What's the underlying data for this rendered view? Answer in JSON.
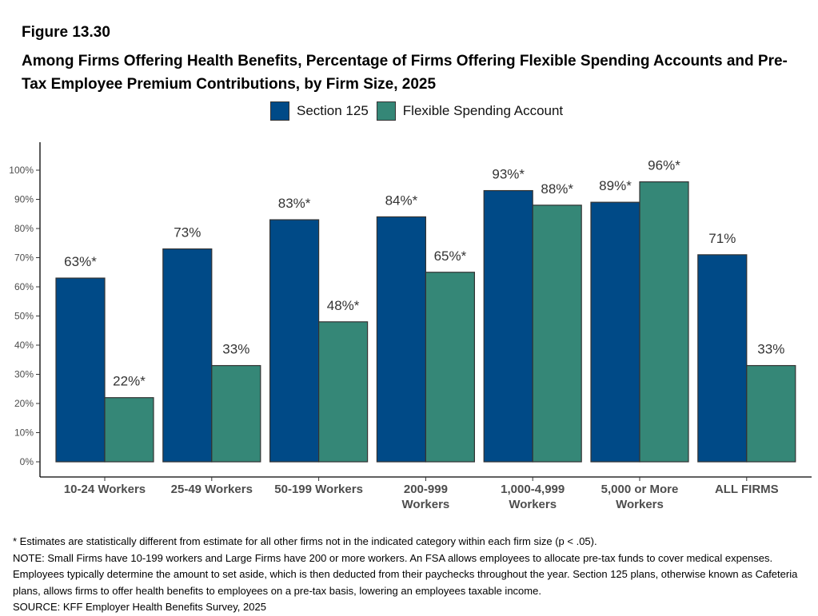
{
  "figure_label": "Figure 13.30",
  "chart_data": {
    "type": "bar",
    "title": "Among Firms Offering Health Benefits, Percentage of Firms Offering Flexible Spending Accounts and Pre-Tax Employee Premium Contributions, by Firm Size, 2025",
    "categories": [
      [
        "10-24 Workers"
      ],
      [
        "25-49 Workers"
      ],
      [
        "50-199 Workers"
      ],
      [
        "200-999",
        "Workers"
      ],
      [
        "1,000-4,999",
        "Workers"
      ],
      [
        "5,000 or More",
        "Workers"
      ],
      [
        "ALL FIRMS"
      ]
    ],
    "series": [
      {
        "name": "Section 125",
        "color": "#004a87",
        "values": [
          63,
          73,
          83,
          84,
          93,
          89,
          71
        ],
        "labels": [
          "63%*",
          "73%",
          "83%*",
          "84%*",
          "93%*",
          "89%*",
          "71%"
        ]
      },
      {
        "name": "Flexible Spending Account",
        "color": "#358777",
        "values": [
          22,
          33,
          48,
          65,
          88,
          96,
          33
        ],
        "labels": [
          "22%*",
          "33%",
          "48%*",
          "65%*",
          "88%*",
          "96%*",
          "33%"
        ]
      }
    ],
    "ylim": [
      0,
      100
    ],
    "yticks": [
      "0%",
      "10%",
      "20%",
      "30%",
      "40%",
      "50%",
      "60%",
      "70%",
      "80%",
      "90%",
      "100%"
    ],
    "grid": false,
    "legend_position": "top"
  },
  "notes": [
    "* Estimates are statistically different from estimate for all other firms not in the indicated category within each firm size (p < .05).",
    "NOTE: Small Firms have 10-199 workers and Large Firms have 200 or more workers.  An FSA allows employees to allocate pre-tax funds to cover medical expenses. Employees typically determine the amount to set aside, which is then deducted from their paychecks throughout the year. Section 125 plans, otherwise known as Cafeteria plans, allows firms to offer health benefits to employees on a pre-tax basis, lowering an employees taxable income.",
    "SOURCE: KFF Employer Health Benefits Survey, 2025"
  ]
}
